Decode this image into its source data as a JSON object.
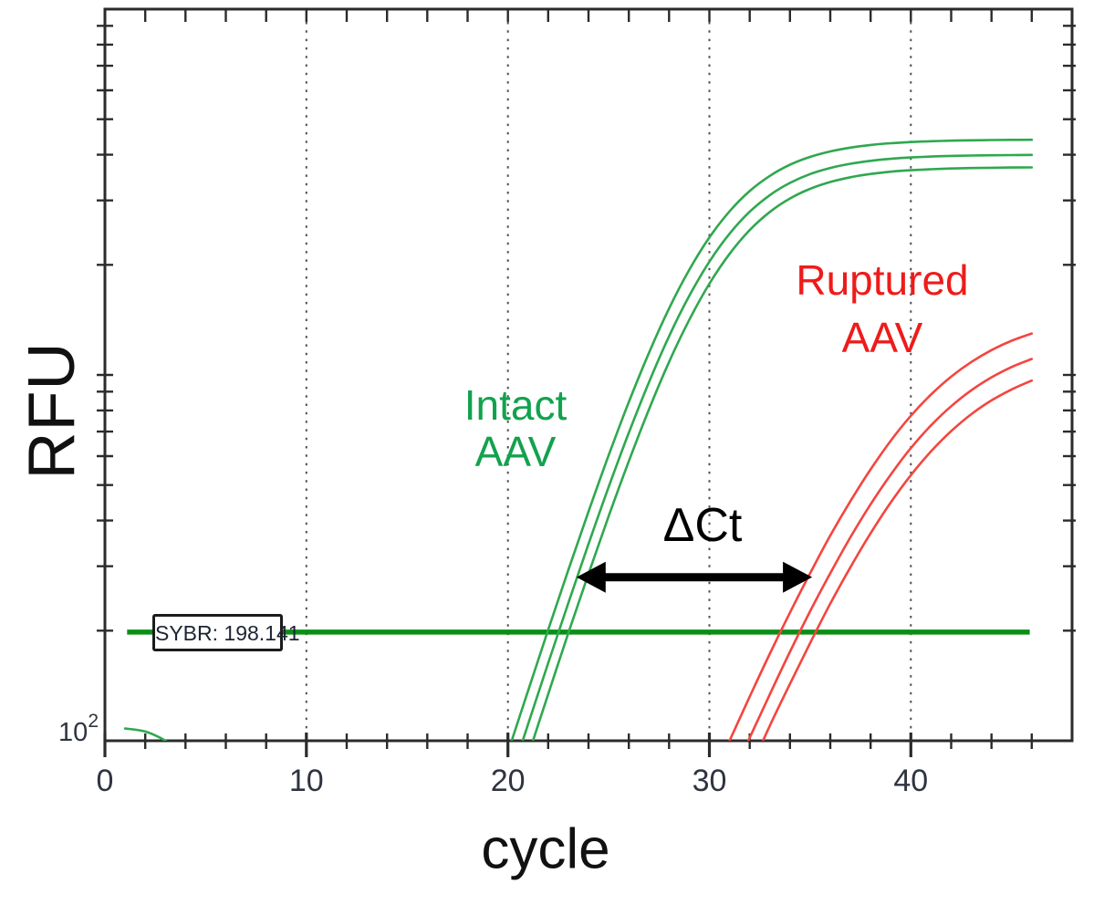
{
  "labels": {
    "y_axis": "RFU",
    "x_axis": "cycle",
    "delta_ct": "ΔCt",
    "threshold": "SYBR: 198.141",
    "y_bottom": {
      "base": "10",
      "exp": "2"
    },
    "intact": [
      "Intact",
      "AAV"
    ],
    "ruptured": [
      "Ruptured",
      "AAV"
    ]
  },
  "colors": {
    "intact_label_green": "#12A24E",
    "ruptured_label_red": "#EE1B1B",
    "green_curve": "#2FA84F",
    "red_curve": "#F4453F",
    "threshold_green": "#0A8F14",
    "axis": "#2B2B2B",
    "gridline": "#4F4F4F",
    "tick_label": "#2E3440",
    "annotation_black": "#000000"
  },
  "chart_data": {
    "type": "line",
    "title": "",
    "xlabel": "cycle",
    "ylabel": "RFU",
    "x_axis": {
      "min": 0,
      "max": 48,
      "major_ticks": [
        0,
        10,
        20,
        30,
        40
      ],
      "minor_tick_step": 2,
      "minor_tick_max": 46,
      "gridlines": [
        10,
        20,
        30,
        40
      ],
      "gridline_style": "dotted"
    },
    "y_axis": {
      "scale": "log",
      "min": 100,
      "max": 10000,
      "bottom_tick_label": "10^2",
      "minor_tick_values": [
        200,
        300,
        400,
        500,
        600,
        700,
        800,
        900,
        1000,
        2000,
        3000,
        4000,
        5000,
        6000,
        7000,
        8000,
        9000
      ]
    },
    "threshold": {
      "label": "SYBR: 198.141",
      "value": 198.141,
      "from_cycle": 1.1,
      "to_cycle": 45.9
    },
    "annotations": [
      {
        "type": "double-arrow",
        "label": "ΔCt",
        "from_cycle": 23.4,
        "to_cycle": 35.1,
        "rfu": 280
      }
    ],
    "groups": [
      {
        "name": "Intact AAV",
        "color": "#12A24E",
        "ct_approx": 22
      },
      {
        "name": "Ruptured AAV",
        "color": "#EE1B1B",
        "ct_approx": 34
      }
    ],
    "series": [
      {
        "name": "intact-aav-rep1",
        "group": "Intact AAV",
        "color": "#2FA84F",
        "points": [
          [
            20,
            93
          ],
          [
            21,
            137
          ],
          [
            22,
            201
          ],
          [
            23,
            293
          ],
          [
            24,
            423
          ],
          [
            25,
            603
          ],
          [
            26,
            843
          ],
          [
            27,
            1149
          ],
          [
            28,
            1519
          ],
          [
            29,
            1937
          ],
          [
            30,
            2376
          ],
          [
            31,
            2800
          ],
          [
            32,
            3182
          ],
          [
            33,
            3501
          ],
          [
            34,
            3754
          ],
          [
            35,
            3945
          ],
          [
            36,
            4084
          ],
          [
            37,
            4183
          ],
          [
            38,
            4252
          ],
          [
            39,
            4300
          ],
          [
            40,
            4332
          ],
          [
            41,
            4354
          ],
          [
            42,
            4369
          ],
          [
            43,
            4379
          ],
          [
            44,
            4386
          ],
          [
            45,
            4391
          ],
          [
            46,
            4394
          ]
        ]
      },
      {
        "name": "intact-aav-rep2",
        "group": "Intact AAV",
        "color": "#2FA84F",
        "points": [
          [
            20,
            75
          ],
          [
            21,
            111
          ],
          [
            22,
            163
          ],
          [
            23,
            238
          ],
          [
            24,
            345
          ],
          [
            25,
            494
          ],
          [
            26,
            695
          ],
          [
            27,
            955
          ],
          [
            28,
            1275
          ],
          [
            29,
            1644
          ],
          [
            30,
            2040
          ],
          [
            31,
            2433
          ],
          [
            32,
            2794
          ],
          [
            33,
            3102
          ],
          [
            34,
            3350
          ],
          [
            35,
            3540
          ],
          [
            36,
            3679
          ],
          [
            37,
            3779
          ],
          [
            38,
            3849
          ],
          [
            39,
            3898
          ],
          [
            40,
            3931
          ],
          [
            41,
            3953
          ],
          [
            42,
            3969
          ],
          [
            43,
            3979
          ],
          [
            44,
            3986
          ],
          [
            45,
            3990
          ],
          [
            46,
            3994
          ]
        ]
      },
      {
        "name": "intact-aav-rep3",
        "group": "Intact AAV",
        "color": "#2FA84F",
        "points": [
          [
            20,
            62
          ],
          [
            21,
            91
          ],
          [
            22,
            134
          ],
          [
            23,
            197
          ],
          [
            24,
            286
          ],
          [
            25,
            411
          ],
          [
            26,
            581
          ],
          [
            27,
            805
          ],
          [
            28,
            1085
          ],
          [
            29,
            1414
          ],
          [
            30,
            1776
          ],
          [
            31,
            2143
          ],
          [
            32,
            2489
          ],
          [
            33,
            2790
          ],
          [
            34,
            3036
          ],
          [
            35,
            3227
          ],
          [
            36,
            3369
          ],
          [
            37,
            3471
          ],
          [
            38,
            3544
          ],
          [
            39,
            3594
          ],
          [
            40,
            3628
          ],
          [
            41,
            3651
          ],
          [
            42,
            3667
          ],
          [
            43,
            3678
          ],
          [
            44,
            3685
          ],
          [
            45,
            3690
          ],
          [
            46,
            3693
          ]
        ]
      },
      {
        "name": "ruptured-aav-rep1",
        "group": "Ruptured AAV",
        "color": "#F4453F",
        "points": [
          [
            30,
            75
          ],
          [
            31,
            100
          ],
          [
            32,
            132
          ],
          [
            33,
            173
          ],
          [
            34,
            224
          ],
          [
            35,
            287
          ],
          [
            36,
            364
          ],
          [
            37,
            452
          ],
          [
            38,
            552
          ],
          [
            39,
            661
          ],
          [
            40,
            773
          ],
          [
            41,
            884
          ],
          [
            42,
            989
          ],
          [
            43,
            1085
          ],
          [
            44,
            1169
          ],
          [
            45,
            1240
          ],
          [
            46,
            1298
          ]
        ]
      },
      {
        "name": "ruptured-aav-rep2",
        "group": "Ruptured AAV",
        "color": "#F4453F",
        "points": [
          [
            31,
            77
          ],
          [
            32,
            102
          ],
          [
            33,
            134
          ],
          [
            34,
            175
          ],
          [
            35,
            226
          ],
          [
            36,
            287
          ],
          [
            37,
            360
          ],
          [
            38,
            443
          ],
          [
            39,
            534
          ],
          [
            40,
            631
          ],
          [
            41,
            728
          ],
          [
            42,
            821
          ],
          [
            43,
            908
          ],
          [
            44,
            985
          ],
          [
            45,
            1051
          ],
          [
            46,
            1106
          ]
        ]
      },
      {
        "name": "ruptured-aav-rep3",
        "group": "Ruptured AAV",
        "color": "#F4453F",
        "points": [
          [
            32,
            83
          ],
          [
            33,
            110
          ],
          [
            34,
            143
          ],
          [
            35,
            185
          ],
          [
            36,
            237
          ],
          [
            37,
            298
          ],
          [
            38,
            369
          ],
          [
            39,
            448
          ],
          [
            40,
            532
          ],
          [
            41,
            618
          ],
          [
            42,
            702
          ],
          [
            43,
            781
          ],
          [
            44,
            852
          ],
          [
            45,
            913
          ],
          [
            46,
            965
          ]
        ]
      },
      {
        "name": "baseline-artifact",
        "group": "Intact AAV",
        "color": "#2FA84F",
        "points": [
          [
            1,
            108
          ],
          [
            2,
            106
          ],
          [
            3,
            100
          ],
          [
            3.4,
            95
          ]
        ]
      }
    ]
  }
}
